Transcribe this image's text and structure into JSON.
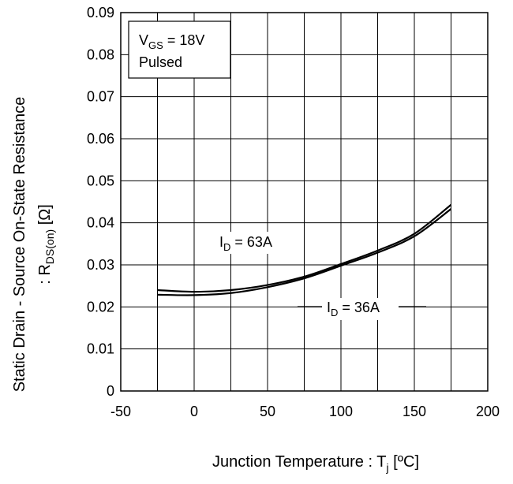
{
  "chart_data": {
    "type": "line",
    "title": "",
    "xlabel": {
      "main": "Junction Temperature : T",
      "sub": "j",
      "unit": " [ºC]"
    },
    "ylabel": {
      "line1": "Static Drain - Source On-State Resistance",
      "line2_prefix": ": R",
      "line2_sub": "DS(on)",
      "line2_unit": " [Ω]"
    },
    "xlim": [
      -50,
      200
    ],
    "ylim": [
      0,
      0.09
    ],
    "x_ticks": [
      "-50",
      "0",
      "50",
      "100",
      "150",
      "200"
    ],
    "y_ticks": [
      "0",
      "0.01",
      "0.02",
      "0.03",
      "0.04",
      "0.05",
      "0.06",
      "0.07",
      "0.08",
      "0.09"
    ],
    "x_grid_step": 25,
    "y_grid_step": 0.01,
    "grid": true,
    "conditions": {
      "vgs_main": "V",
      "vgs_sub": "GS",
      "vgs_value": " = 18V",
      "mode": "Pulsed"
    },
    "series": [
      {
        "name": "63A",
        "label_main": "I",
        "label_sub": "D",
        "label_value": " = 63A",
        "x": [
          -25,
          0,
          25,
          50,
          75,
          100,
          125,
          150,
          175
        ],
        "y": [
          0.024,
          0.0236,
          0.024,
          0.0252,
          0.0272,
          0.0302,
          0.0334,
          0.0374,
          0.0443
        ]
      },
      {
        "name": "36A",
        "label_main": "I",
        "label_sub": "D",
        "label_value": " = 36A",
        "x": [
          -25,
          0,
          25,
          50,
          75,
          100,
          125,
          150,
          175
        ],
        "y": [
          0.0229,
          0.0228,
          0.0233,
          0.0247,
          0.0268,
          0.0298,
          0.0329,
          0.0368,
          0.0433
        ]
      }
    ]
  }
}
